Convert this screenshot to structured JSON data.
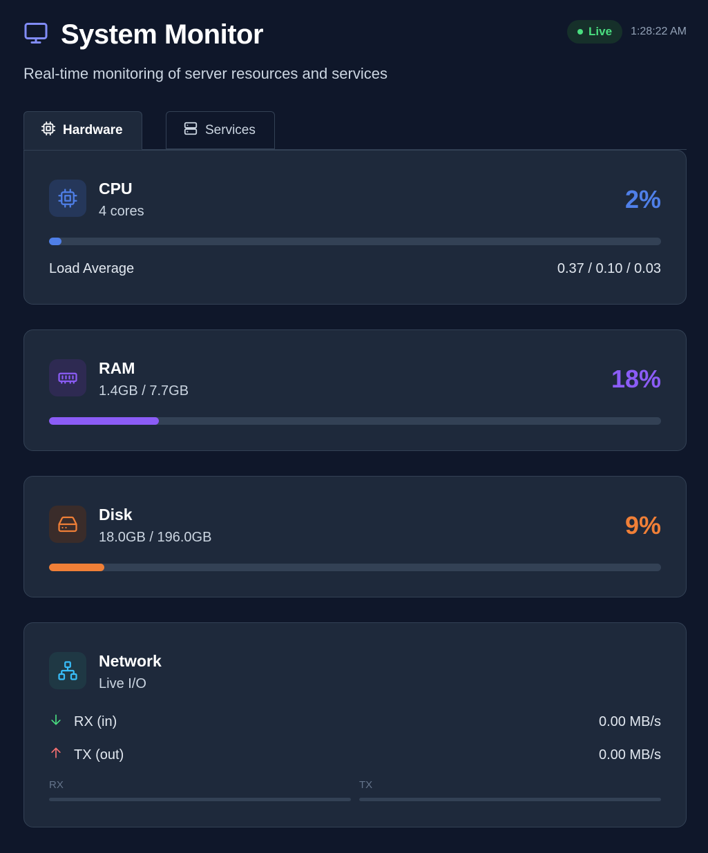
{
  "header": {
    "title": "System Monitor",
    "subtitle": "Real-time monitoring of server resources and services",
    "live_label": "Live",
    "time": "1:28:22 AM"
  },
  "tabs": [
    {
      "label": "Hardware",
      "active": true
    },
    {
      "label": "Services",
      "active": false
    }
  ],
  "cpu": {
    "name": "CPU",
    "sub": "4 cores",
    "percent_label": "2%",
    "percent": 2,
    "color": "#4f7fe8",
    "load_label": "Load Average",
    "load_value": "0.37 / 0.10 / 0.03"
  },
  "ram": {
    "name": "RAM",
    "sub": "1.4GB / 7.7GB",
    "percent_label": "18%",
    "percent": 18,
    "color": "#8b5cf6"
  },
  "disk": {
    "name": "Disk",
    "sub": "18.0GB / 196.0GB",
    "percent_label": "9%",
    "percent": 9,
    "color": "#f07f37"
  },
  "network": {
    "name": "Network",
    "sub": "Live I/O",
    "rx_label": "RX (in)",
    "rx_value": "0.00 MB/s",
    "tx_label": "TX (out)",
    "tx_value": "0.00 MB/s",
    "rx_mini_label": "RX",
    "tx_mini_label": "TX",
    "color": "#38bdf8"
  },
  "icons": {
    "title": "monitor-icon",
    "hardware_tab": "cpu-icon",
    "services_tab": "server-icon",
    "cpu": "cpu-icon",
    "ram": "memory-icon",
    "disk": "hard-drive-icon",
    "network": "network-icon",
    "rx": "arrow-down-icon",
    "tx": "arrow-up-icon"
  }
}
